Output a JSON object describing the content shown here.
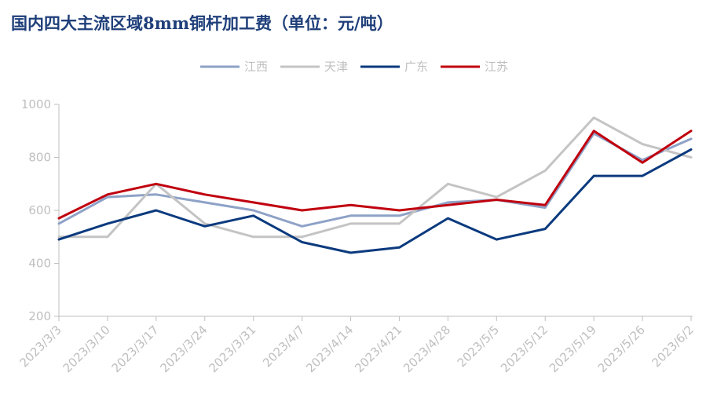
{
  "chart_data": {
    "type": "line",
    "title": "国内四大主流区域8mm铜杆加工费（单位：元/吨）",
    "categories": [
      "2023/3/3",
      "2023/3/10",
      "2023/3/17",
      "2023/3/24",
      "2023/3/31",
      "2023/4/7",
      "2023/4/14",
      "2023/4/21",
      "2023/4/28",
      "2023/5/5",
      "2023/5/12",
      "2023/5/19",
      "2023/5/26",
      "2023/6/2"
    ],
    "series": [
      {
        "name": "江西",
        "color": "#8ea2c7",
        "values": [
          550,
          650,
          660,
          630,
          600,
          540,
          580,
          580,
          630,
          640,
          610,
          890,
          790,
          870
        ]
      },
      {
        "name": "天津",
        "color": "#c4c4c4",
        "values": [
          500,
          500,
          700,
          550,
          500,
          500,
          550,
          550,
          700,
          650,
          750,
          950,
          850,
          800
        ]
      },
      {
        "name": "广东",
        "color": "#0b3a7e",
        "values": [
          490,
          550,
          600,
          540,
          580,
          480,
          440,
          460,
          570,
          490,
          530,
          730,
          730,
          830
        ]
      },
      {
        "name": "江苏",
        "color": "#c0000e",
        "values": [
          570,
          660,
          700,
          660,
          630,
          600,
          620,
          600,
          620,
          640,
          620,
          900,
          780,
          900
        ]
      }
    ],
    "yticks": [
      200,
      400,
      600,
      800,
      1000
    ],
    "ylim": [
      200,
      1000
    ],
    "grid": false,
    "legend_position": "top-center"
  }
}
